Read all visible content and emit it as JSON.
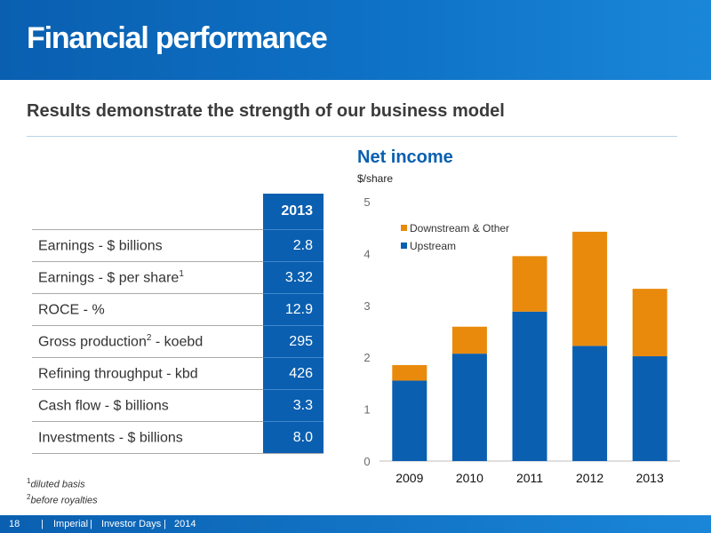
{
  "header": {
    "title": "Financial performance"
  },
  "subtitle": "Results demonstrate the strength of our business model",
  "table": {
    "year_header": "2013",
    "rows": [
      {
        "label": "Earnings - $ billions",
        "sup": "",
        "suffix": "",
        "value": "2.8"
      },
      {
        "label": "Earnings - $ per share",
        "sup": "1",
        "suffix": "",
        "value": "3.32"
      },
      {
        "label": "ROCE - %",
        "sup": "",
        "suffix": "",
        "value": "12.9"
      },
      {
        "label": "Gross production",
        "sup": "2",
        "suffix": " - koebd",
        "value": "295"
      },
      {
        "label": "Refining throughput - kbd",
        "sup": "",
        "suffix": "",
        "value": "426"
      },
      {
        "label": "Cash flow - $ billions",
        "sup": "",
        "suffix": "",
        "value": "3.3"
      },
      {
        "label": "Investments - $ billions",
        "sup": "",
        "suffix": "",
        "value": "8.0"
      }
    ]
  },
  "footnotes": [
    {
      "mark": "1",
      "text": "diluted basis"
    },
    {
      "mark": "2",
      "text": "before royalties"
    }
  ],
  "chart_data": {
    "type": "bar",
    "stacked": true,
    "title": "Net income",
    "ylabel": "$/share",
    "categories": [
      "2009",
      "2010",
      "2011",
      "2012",
      "2013"
    ],
    "series": [
      {
        "name": "Upstream",
        "color": "#0a5fb0",
        "values": [
          1.55,
          2.07,
          2.88,
          2.22,
          2.02
        ]
      },
      {
        "name": "Downstream & Other",
        "color": "#e98a0c",
        "values": [
          0.3,
          0.52,
          1.07,
          2.2,
          1.3
        ]
      }
    ],
    "ylim": [
      0,
      5
    ],
    "yticks": [
      0,
      1,
      2,
      3,
      4,
      5
    ],
    "grid": false,
    "legend_position": "top-left"
  },
  "footer": {
    "page": "18",
    "company": "Imperial",
    "event": "Investor Days",
    "year": "2014",
    "separator": "|"
  }
}
